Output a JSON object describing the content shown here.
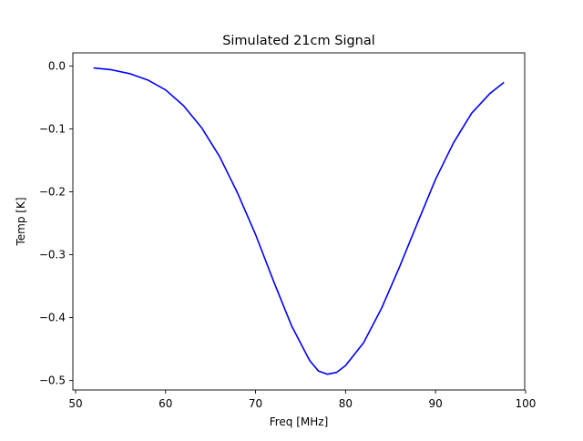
{
  "chart_data": {
    "type": "line",
    "title": "Simulated 21cm Signal",
    "xlabel": "Freq [MHz]",
    "ylabel": "Temp [K]",
    "xlim": [
      49.7,
      99.9
    ],
    "ylim": [
      -0.515,
      0.021
    ],
    "grid": false,
    "x_ticks": [
      50,
      60,
      70,
      80,
      90,
      100
    ],
    "y_ticks": [
      0.0,
      -0.1,
      -0.2,
      -0.3,
      -0.4,
      -0.5
    ],
    "x_tick_labels": [
      "50",
      "60",
      "70",
      "80",
      "90",
      "100"
    ],
    "y_tick_labels": [
      "0.0",
      "−0.1",
      "−0.2",
      "−0.3",
      "−0.4",
      "−0.5"
    ],
    "series": [
      {
        "color": "#0000ff",
        "x": [
          52,
          54,
          56,
          58,
          60,
          62,
          64,
          66,
          68,
          70,
          72,
          74,
          76,
          77,
          78,
          79,
          80,
          82,
          84,
          86,
          88,
          90,
          92,
          94,
          96,
          97.6
        ],
        "y": [
          -0.003,
          -0.006,
          -0.012,
          -0.022,
          -0.038,
          -0.063,
          -0.098,
          -0.144,
          -0.202,
          -0.268,
          -0.342,
          -0.413,
          -0.468,
          -0.485,
          -0.49,
          -0.487,
          -0.476,
          -0.44,
          -0.385,
          -0.319,
          -0.249,
          -0.18,
          -0.122,
          -0.075,
          -0.044,
          -0.026
        ]
      }
    ]
  }
}
